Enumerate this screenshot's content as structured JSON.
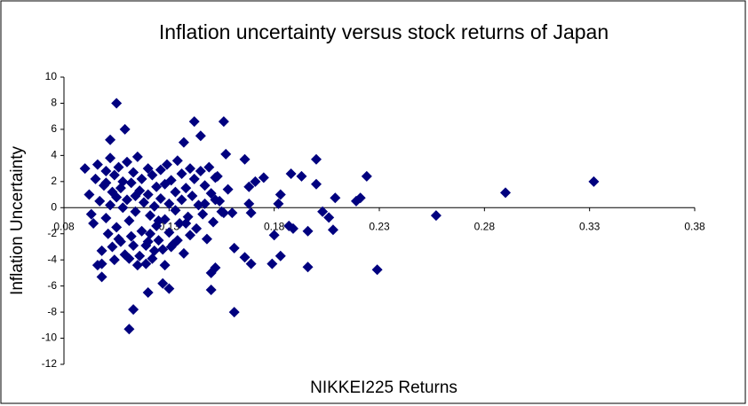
{
  "chart_data": {
    "type": "scatter",
    "title": "Inflation uncertainty versus stock  returns of Japan",
    "x_label": "NIKKEI225 Returns",
    "y_label": "Inflation Uncertainty",
    "color": "#00007f",
    "xlim": [
      0.08,
      0.38
    ],
    "xticks": [
      0.08,
      0.13,
      0.18,
      0.23,
      0.28,
      0.33,
      0.38
    ],
    "ylim": [
      -12,
      10
    ],
    "yticks": [
      -12,
      -10,
      -8,
      -6,
      -4,
      -2,
      0,
      2,
      4,
      6,
      8,
      10
    ],
    "x": [
      0.105,
      0.109,
      0.142,
      0.156,
      0.145,
      0.137,
      0.102,
      0.332,
      0.29,
      0.257,
      0.224,
      0.229,
      0.111,
      0.113,
      0.161,
      0.12,
      0.15,
      0.098,
      0.127,
      0.13,
      0.196,
      0.179,
      0.183,
      0.152,
      0.15,
      0.169,
      0.166,
      0.161,
      0.2,
      0.2,
      0.188,
      0.193,
      0.219,
      0.221,
      0.209,
      0.208,
      0.206,
      0.203,
      0.196,
      0.187,
      0.189,
      0.18,
      0.182,
      0.183,
      0.175,
      0.171,
      0.168,
      0.166,
      0.168,
      0.169,
      0.156,
      0.16,
      0.158,
      0.157,
      0.154,
      0.152,
      0.147,
      0.09,
      0.092,
      0.093,
      0.094,
      0.095,
      0.096,
      0.097,
      0.098,
      0.098,
      0.099,
      0.1,
      0.1,
      0.101,
      0.102,
      0.102,
      0.103,
      0.104,
      0.104,
      0.105,
      0.105,
      0.106,
      0.107,
      0.107,
      0.108,
      0.108,
      0.109,
      0.11,
      0.11,
      0.111,
      0.112,
      0.112,
      0.113,
      0.114,
      0.114,
      0.115,
      0.115,
      0.116,
      0.117,
      0.117,
      0.118,
      0.119,
      0.12,
      0.12,
      0.121,
      0.122,
      0.122,
      0.123,
      0.124,
      0.124,
      0.125,
      0.126,
      0.126,
      0.127,
      0.128,
      0.128,
      0.129,
      0.13,
      0.13,
      0.131,
      0.132,
      0.133,
      0.133,
      0.134,
      0.135,
      0.136,
      0.136,
      0.137,
      0.138,
      0.139,
      0.14,
      0.14,
      0.141,
      0.142,
      0.143,
      0.144,
      0.145,
      0.146,
      0.147,
      0.148,
      0.149,
      0.15,
      0.151,
      0.152,
      0.153,
      0.155,
      0.096,
      0.1,
      0.103,
      0.106,
      0.111,
      0.113,
      0.116,
      0.119,
      0.121,
      0.123,
      0.128,
      0.131,
      0.134,
      0.138,
      0.12,
      0.125
    ],
    "values": [
      8.0,
      6.0,
      6.6,
      6.6,
      5.5,
      5.0,
      5.2,
      2.0,
      1.15,
      -0.6,
      2.4,
      -4.75,
      -9.3,
      -7.8,
      -8.0,
      -6.5,
      -6.3,
      -5.3,
      -5.8,
      -6.2,
      -4.55,
      -4.3,
      -3.7,
      -4.6,
      -5.0,
      -4.3,
      -3.8,
      -3.1,
      3.7,
      1.8,
      2.6,
      2.4,
      0.5,
      0.75,
      0.75,
      -1.7,
      -0.75,
      -0.3,
      -1.8,
      -1.4,
      -1.6,
      -2.1,
      0.3,
      1.0,
      2.3,
      2.0,
      1.6,
      3.7,
      0.3,
      -0.4,
      -0.4,
      -0.4,
      1.4,
      4.1,
      0.5,
      2.3,
      0.3,
      3.0,
      1.0,
      -0.5,
      -1.2,
      2.2,
      3.3,
      0.5,
      -3.3,
      -4.3,
      1.7,
      2.8,
      -0.8,
      -2.0,
      0.2,
      3.8,
      1.2,
      -4.0,
      2.5,
      0.8,
      -1.5,
      3.1,
      -2.6,
      1.5,
      0.0,
      2.0,
      -3.6,
      3.5,
      0.6,
      -1.0,
      1.9,
      -2.2,
      2.7,
      -0.3,
      0.9,
      -4.4,
      3.9,
      1.3,
      -1.8,
      2.2,
      0.4,
      -2.9,
      1.0,
      3.0,
      -0.6,
      -3.9,
      2.5,
      0.1,
      1.6,
      -1.4,
      -2.5,
      2.9,
      0.7,
      -3.2,
      1.8,
      -0.9,
      3.3,
      -1.9,
      0.3,
      2.1,
      -2.8,
      1.2,
      -0.2,
      3.6,
      -1.2,
      2.6,
      0.6,
      -3.5,
      1.5,
      -0.7,
      3.0,
      -2.1,
      0.9,
      2.2,
      -1.6,
      0.2,
      2.8,
      -0.5,
      1.7,
      -2.4,
      3.1,
      1.1,
      -1.1,
      0.6,
      2.4,
      -0.3,
      -4.4,
      1.9,
      -3.0,
      -2.4,
      -3.9,
      -2.9,
      -3.7,
      -4.3,
      -2.0,
      -3.3,
      -4.4,
      -3.0,
      -2.5,
      -1.2,
      -2.6,
      -1.0
    ]
  }
}
